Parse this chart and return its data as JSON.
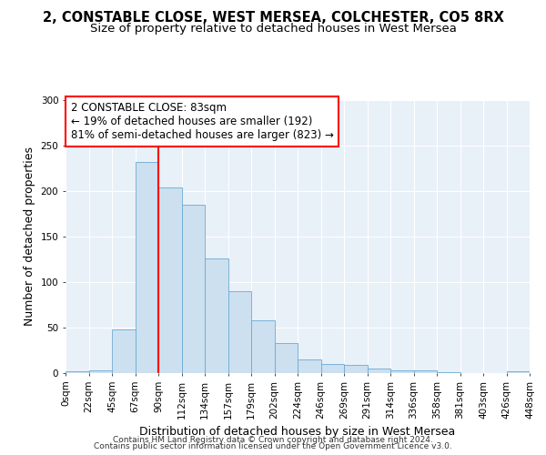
{
  "title1": "2, CONSTABLE CLOSE, WEST MERSEA, COLCHESTER, CO5 8RX",
  "title2": "Size of property relative to detached houses in West Mersea",
  "xlabel": "Distribution of detached houses by size in West Mersea",
  "ylabel": "Number of detached properties",
  "footnote1": "Contains HM Land Registry data © Crown copyright and database right 2024.",
  "footnote2": "Contains public sector information licensed under the Open Government Licence v3.0.",
  "bar_left_edges": [
    0,
    22.5,
    45,
    67.5,
    90,
    112.5,
    135,
    157.5,
    180,
    202.5,
    225,
    247.5,
    270,
    292.5,
    315,
    337.5,
    360,
    382.5,
    405,
    427.5
  ],
  "bar_heights": [
    2,
    3,
    48,
    232,
    204,
    185,
    126,
    90,
    58,
    33,
    15,
    10,
    9,
    5,
    3,
    3,
    1,
    0,
    0,
    2
  ],
  "bar_width": 22.5,
  "bar_color": "#cce0f0",
  "bar_edgecolor": "#6aaad4",
  "vline_x": 90,
  "vline_color": "red",
  "annotation_text": "2 CONSTABLE CLOSE: 83sqm\n← 19% of detached houses are smaller (192)\n81% of semi-detached houses are larger (823) →",
  "annotation_box_color": "white",
  "annotation_box_edgecolor": "red",
  "ylim": [
    0,
    300
  ],
  "xlim": [
    0,
    450
  ],
  "tick_labels": [
    "0sqm",
    "22sqm",
    "45sqm",
    "67sqm",
    "90sqm",
    "112sqm",
    "134sqm",
    "157sqm",
    "179sqm",
    "202sqm",
    "224sqm",
    "246sqm",
    "269sqm",
    "291sqm",
    "314sqm",
    "336sqm",
    "358sqm",
    "381sqm",
    "403sqm",
    "426sqm",
    "448sqm"
  ],
  "tick_positions": [
    0,
    22.5,
    45,
    67.5,
    90,
    112.5,
    135,
    157.5,
    180,
    202.5,
    225,
    247.5,
    270,
    292.5,
    315,
    337.5,
    360,
    382.5,
    405,
    427.5,
    450
  ],
  "background_color": "#ffffff",
  "plot_bg_color": "#e8f0f8",
  "grid_color": "#ffffff",
  "title_fontsize": 10.5,
  "subtitle_fontsize": 9.5,
  "axis_label_fontsize": 9,
  "tick_fontsize": 7.5,
  "annotation_fontsize": 8.5,
  "footnote_fontsize": 6.5,
  "yticks": [
    0,
    50,
    100,
    150,
    200,
    250,
    300
  ]
}
